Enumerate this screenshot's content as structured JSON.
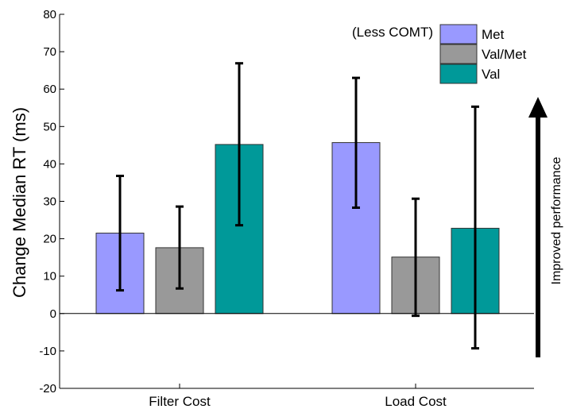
{
  "chart_data": {
    "type": "bar",
    "categories": [
      "Filter Cost",
      "Load Cost"
    ],
    "ylabel": "Change Median RT (ms)",
    "xlabel": "",
    "ylim": [
      -20,
      80
    ],
    "yticks": [
      -20,
      -10,
      0,
      10,
      20,
      30,
      40,
      50,
      60,
      70,
      80
    ],
    "grid": false,
    "legend_title": "(Less COMT)",
    "legend_position": "top-right",
    "annotation": "Improved performance",
    "series": [
      {
        "name": "Met",
        "color": "#9999ff",
        "values": [
          21.5,
          45.7
        ],
        "error_low": [
          6.2,
          28.3
        ],
        "error_high": [
          36.8,
          63.0
        ]
      },
      {
        "name": "Val/Met",
        "color": "#999999",
        "values": [
          17.6,
          15.1
        ],
        "error_low": [
          6.7,
          -0.6
        ],
        "error_high": [
          28.6,
          30.7
        ]
      },
      {
        "name": "Val",
        "color": "#009999",
        "values": [
          45.2,
          22.8
        ],
        "error_low": [
          23.6,
          -9.3
        ],
        "error_high": [
          66.9,
          55.3
        ]
      }
    ]
  }
}
